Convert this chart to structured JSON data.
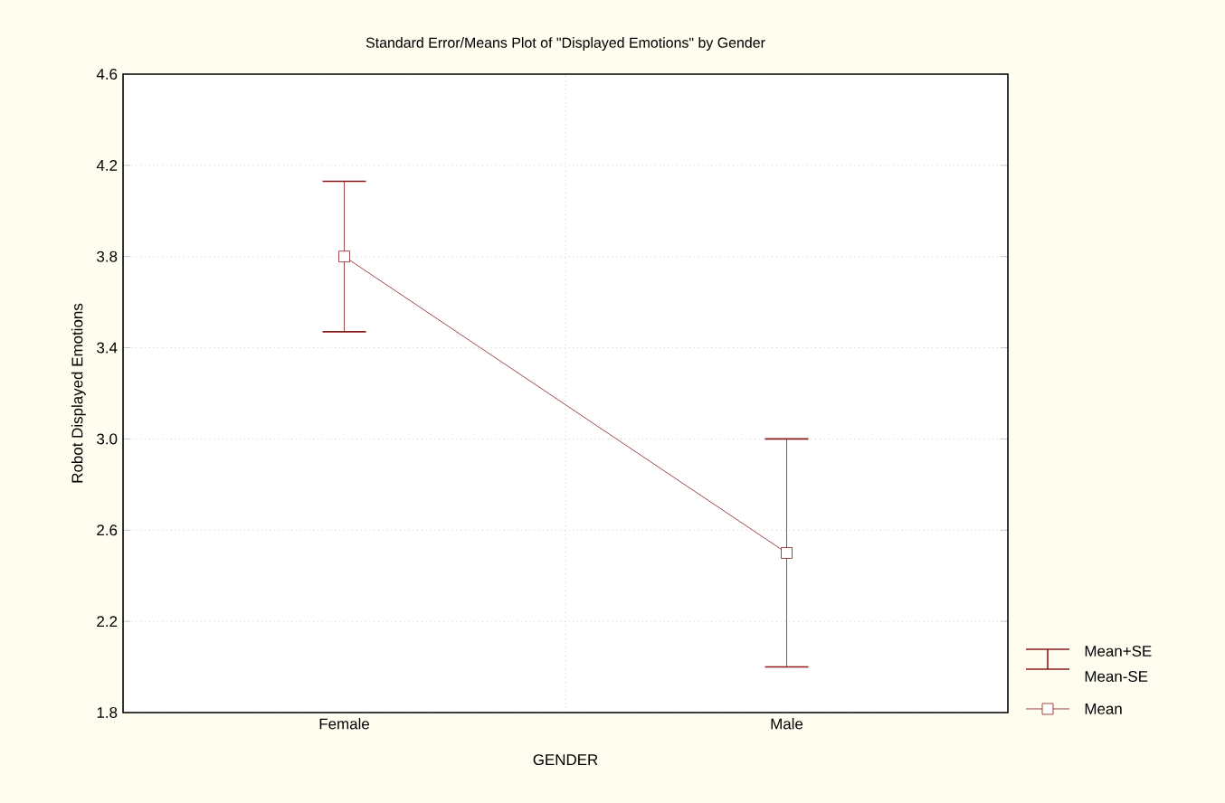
{
  "chart_data": {
    "type": "line",
    "title": "Standard Error/Means Plot of \"Displayed Emotions\" by Gender",
    "xlabel": "GENDER",
    "ylabel": "Robot Displayed Emotions",
    "categories": [
      "Female",
      "Male"
    ],
    "series": [
      {
        "name": "Mean",
        "color": "#8b1a1a",
        "values": [
          3.8,
          2.5
        ],
        "errors": [
          [
            3.47,
            4.13
          ],
          [
            2.0,
            3.0
          ]
        ]
      }
    ],
    "annotations": [
      "Mean+SE",
      "Mean-SE"
    ],
    "ylim": [
      1.8,
      4.6
    ],
    "yticks": [
      1.8,
      2.2,
      2.6,
      {
        "value": 3,
        "label": "3.0"
      },
      3.4,
      3.8,
      4.2,
      4.6
    ],
    "grid": true,
    "legend": "bottom right",
    "marker": "square",
    "line_style": "solid"
  }
}
